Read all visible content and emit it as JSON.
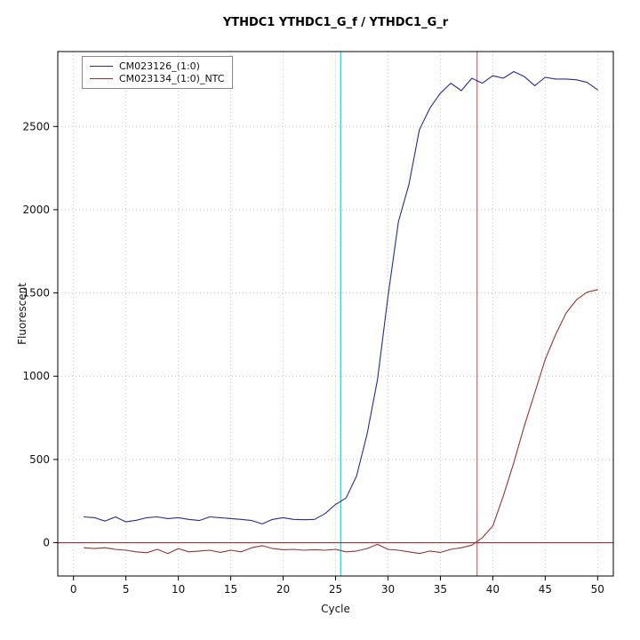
{
  "chart_data": {
    "type": "line",
    "title": "YTHDC1  YTHDC1_G_f / YTHDC1_G_r",
    "xlabel": "Cycle",
    "ylabel": "Fluorescent",
    "xlim": [
      -1.5,
      51.5
    ],
    "ylim": [
      -200,
      2950
    ],
    "xticks": [
      0,
      5,
      10,
      15,
      20,
      25,
      30,
      35,
      40,
      45,
      50
    ],
    "yticks": [
      0,
      500,
      1000,
      1500,
      2000,
      2500
    ],
    "grid": true,
    "grid_style": "dotted",
    "legend_position": "top-left",
    "x": [
      1,
      2,
      3,
      4,
      5,
      6,
      7,
      8,
      9,
      10,
      11,
      12,
      13,
      14,
      15,
      16,
      17,
      18,
      19,
      20,
      21,
      22,
      23,
      24,
      25,
      26,
      27,
      28,
      29,
      30,
      31,
      32,
      33,
      34,
      35,
      36,
      37,
      38,
      39,
      40,
      41,
      42,
      43,
      44,
      45,
      46,
      47,
      48,
      49,
      50
    ],
    "series": [
      {
        "name": "CM023126_(1:0)",
        "color": "#2a2a99",
        "values": [
          155,
          150,
          130,
          155,
          125,
          135,
          150,
          155,
          145,
          150,
          140,
          133,
          155,
          150,
          145,
          140,
          133,
          113,
          140,
          150,
          140,
          138,
          140,
          175,
          230,
          268,
          400,
          650,
          980,
          1480,
          1930,
          2150,
          2480,
          2610,
          2700,
          2760,
          2715,
          2790,
          2760,
          2805,
          2790,
          2830,
          2800,
          2745,
          2795,
          2785,
          2785,
          2780,
          2765,
          2720
        ]
      },
      {
        "name": "CM023134_(1:0)_NTC",
        "color": "#993333",
        "values": [
          -30,
          -35,
          -30,
          -40,
          -45,
          -55,
          -60,
          -40,
          -65,
          -35,
          -55,
          -50,
          -45,
          -58,
          -45,
          -55,
          -30,
          -18,
          -35,
          -42,
          -40,
          -45,
          -42,
          -45,
          -40,
          -55,
          -50,
          -35,
          -10,
          -40,
          -45,
          -55,
          -65,
          -50,
          -58,
          -40,
          -30,
          -15,
          30,
          100,
          280,
          480,
          700,
          900,
          1100,
          1250,
          1380,
          1460,
          1505,
          1520
        ]
      }
    ],
    "thresholds": {
      "vertical": [
        {
          "x": 25.5,
          "color": "#00e5e5",
          "label": "ct-line-sample"
        },
        {
          "x": 38.5,
          "color": "#cc6666",
          "label": "ct-line-ntc"
        }
      ],
      "horizontal": [
        {
          "y": 0,
          "color": "#993333",
          "label": "baseline-threshold"
        }
      ]
    },
    "colors": {
      "grid": "#c8c8c8",
      "box": "#000000",
      "text": "#111111"
    }
  }
}
